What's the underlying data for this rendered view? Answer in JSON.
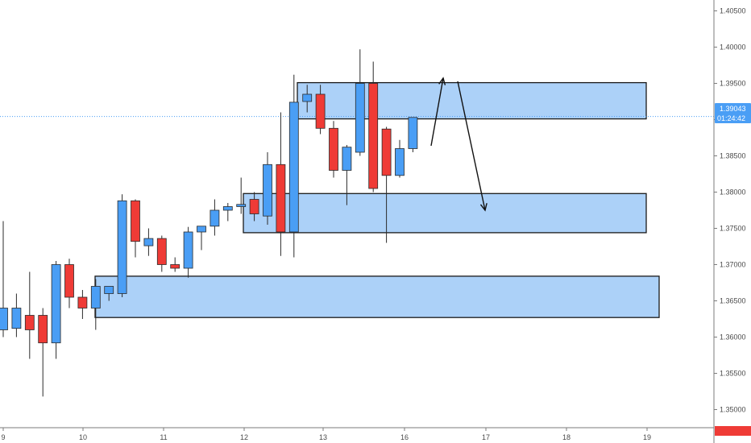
{
  "colors": {
    "up": "#4a9ef5",
    "down": "#ef3b36",
    "wick": "#2b2b2b",
    "zone_fill": "#9ec9f7",
    "zone_border": "#1a1a1a",
    "axis_line": "#7b7b7b",
    "price_line": "#4a9ef5",
    "price_badge": "#4a9ef5",
    "red_badge": "#ef3b36"
  },
  "price_badge": {
    "price": "1.39043",
    "countdown": "01:24:42"
  },
  "chart_data": {
    "type": "candlestick",
    "ylim": [
      1.3475,
      1.4065
    ],
    "x_axis_ticks": [
      "9",
      "10",
      "11",
      "12",
      "13",
      "16",
      "17",
      "18",
      "19"
    ],
    "y_axis_ticks": [
      "1.35000",
      "1.35500",
      "1.36000",
      "1.36500",
      "1.37000",
      "1.37500",
      "1.38000",
      "1.38500",
      "1.39000",
      "1.39500",
      "1.40000",
      "1.40500"
    ],
    "current_price": 1.39043,
    "candles": [
      {
        "o": 1.361,
        "h": 1.376,
        "l": 1.36,
        "c": 1.364
      },
      {
        "o": 1.3612,
        "h": 1.366,
        "l": 1.36,
        "c": 1.364
      },
      {
        "o": 1.363,
        "h": 1.369,
        "l": 1.357,
        "c": 1.361
      },
      {
        "o": 1.363,
        "h": 1.364,
        "l": 1.3518,
        "c": 1.3592
      },
      {
        "o": 1.3592,
        "h": 1.3705,
        "l": 1.357,
        "c": 1.37
      },
      {
        "o": 1.37,
        "h": 1.3708,
        "l": 1.364,
        "c": 1.3655
      },
      {
        "o": 1.3655,
        "h": 1.3665,
        "l": 1.3625,
        "c": 1.364
      },
      {
        "o": 1.364,
        "h": 1.368,
        "l": 1.361,
        "c": 1.367
      },
      {
        "o": 1.366,
        "h": 1.367,
        "l": 1.365,
        "c": 1.367
      },
      {
        "o": 1.366,
        "h": 1.3797,
        "l": 1.3655,
        "c": 1.3788
      },
      {
        "o": 1.3788,
        "h": 1.379,
        "l": 1.371,
        "c": 1.3732
      },
      {
        "o": 1.3726,
        "h": 1.375,
        "l": 1.3712,
        "c": 1.3736
      },
      {
        "o": 1.3736,
        "h": 1.374,
        "l": 1.369,
        "c": 1.37
      },
      {
        "o": 1.37,
        "h": 1.371,
        "l": 1.369,
        "c": 1.3695
      },
      {
        "o": 1.3695,
        "h": 1.3752,
        "l": 1.3682,
        "c": 1.3745
      },
      {
        "o": 1.3745,
        "h": 1.3752,
        "l": 1.372,
        "c": 1.3753
      },
      {
        "o": 1.3753,
        "h": 1.379,
        "l": 1.374,
        "c": 1.3775
      },
      {
        "o": 1.3775,
        "h": 1.3785,
        "l": 1.376,
        "c": 1.378
      },
      {
        "o": 1.378,
        "h": 1.382,
        "l": 1.377,
        "c": 1.3783
      },
      {
        "o": 1.379,
        "h": 1.38,
        "l": 1.376,
        "c": 1.377
      },
      {
        "o": 1.3767,
        "h": 1.3855,
        "l": 1.3755,
        "c": 1.3838
      },
      {
        "o": 1.3838,
        "h": 1.391,
        "l": 1.3712,
        "c": 1.3745
      },
      {
        "o": 1.3745,
        "h": 1.3962,
        "l": 1.371,
        "c": 1.3924
      },
      {
        "o": 1.3925,
        "h": 1.3948,
        "l": 1.391,
        "c": 1.3935
      },
      {
        "o": 1.3935,
        "h": 1.3948,
        "l": 1.388,
        "c": 1.3888
      },
      {
        "o": 1.3888,
        "h": 1.3898,
        "l": 1.382,
        "c": 1.383
      },
      {
        "o": 1.383,
        "h": 1.3865,
        "l": 1.3782,
        "c": 1.3862
      },
      {
        "o": 1.3855,
        "h": 1.3997,
        "l": 1.385,
        "c": 1.395
      },
      {
        "o": 1.395,
        "h": 1.398,
        "l": 1.38,
        "c": 1.3805
      },
      {
        "o": 1.3887,
        "h": 1.389,
        "l": 1.373,
        "c": 1.3823
      },
      {
        "o": 1.3823,
        "h": 1.3872,
        "l": 1.382,
        "c": 1.386
      },
      {
        "o": 1.386,
        "h": 1.3903,
        "l": 1.3855,
        "c": 1.3903
      }
    ],
    "zones": [
      {
        "name": "upper-zone",
        "top": 1.3951,
        "bottom": 1.3901
      },
      {
        "name": "middle-zone",
        "top": 1.3798,
        "bottom": 1.3744
      },
      {
        "name": "lower-zone",
        "top": 1.3684,
        "bottom": 1.3627
      }
    ]
  }
}
